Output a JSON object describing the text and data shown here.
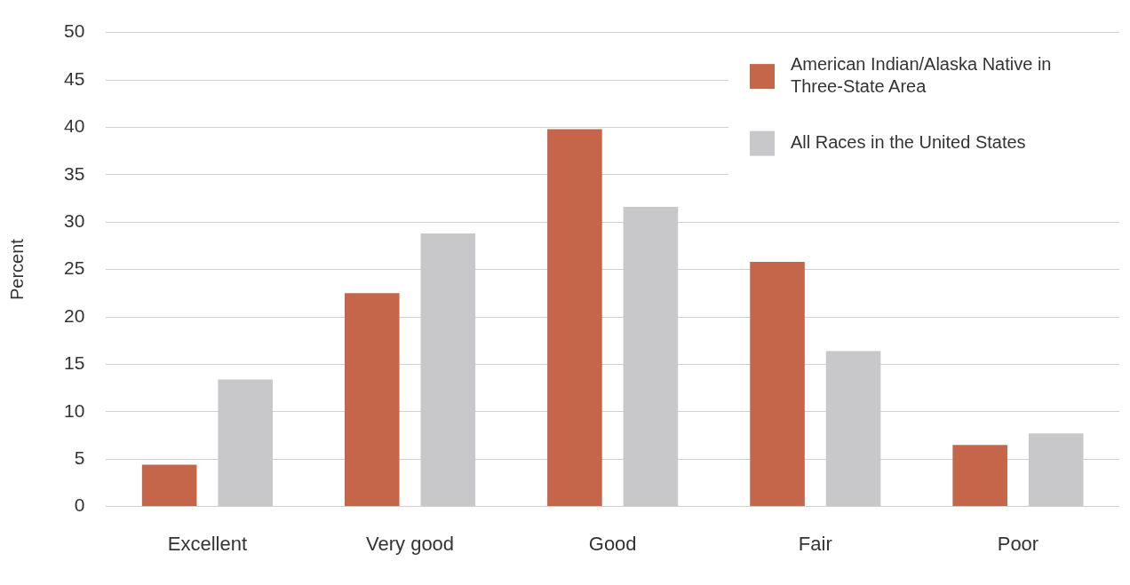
{
  "chart_data": {
    "type": "bar",
    "ylabel": "Percent",
    "categories": [
      "Excellent",
      "Very good",
      "Good",
      "Fair",
      "Poor"
    ],
    "series": [
      {
        "name": "American Indian/Alaska Native in Three-State Area",
        "color": "#c5654a",
        "values": [
          4.4,
          22.5,
          39.8,
          25.8,
          6.5
        ]
      },
      {
        "name": "All Races in the United States",
        "color": "#c8c8ca",
        "values": [
          13.4,
          28.8,
          31.6,
          16.4,
          7.7
        ]
      }
    ],
    "ylim": [
      0,
      50
    ],
    "yticks": [
      0,
      5,
      10,
      15,
      20,
      25,
      30,
      35,
      40,
      45,
      50
    ],
    "grid": "y",
    "legend": "top right"
  }
}
